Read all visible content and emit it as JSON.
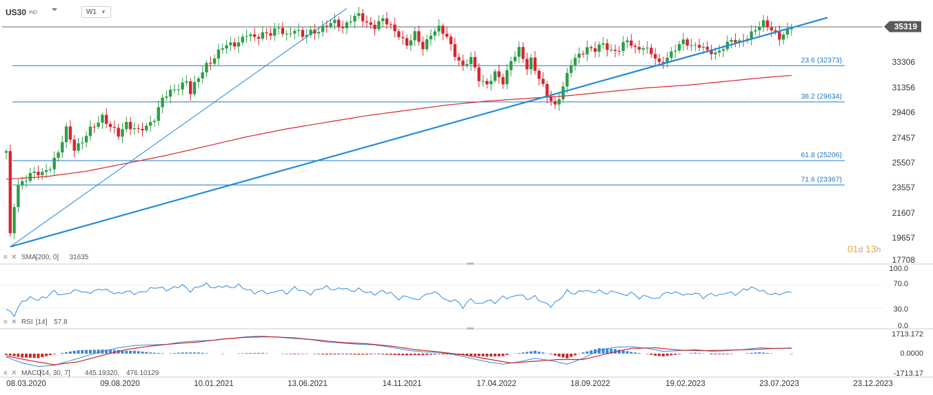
{
  "header": {
    "symbol": "US30",
    "symbol_type": "IND",
    "timeframe": "W1"
  },
  "countdown": {
    "days": "01",
    "d": "d",
    "hours": "13",
    "h": "h"
  },
  "colors": {
    "bull": "#2e9e48",
    "bear": "#d8252f",
    "sma": "#d8252f",
    "fib": "#1f78c1",
    "trend": "#1f8ad8",
    "rsi": "#2b8be0",
    "macd": "#3a86d8",
    "signal": "#c42a2a",
    "price_tag": "#5a5a5a",
    "countdown": "#f0a830"
  },
  "chart_data": [
    {
      "type": "candlestick",
      "title": "US30 IND W1",
      "x_tick_labels": [
        "08.03.2020",
        "09.08.2020",
        "10.01.2021",
        "13.06.2021",
        "14.11.2021",
        "17.04.2022",
        "18.09.2022",
        "19.02.2023",
        "23.07.2023",
        "23.12.2023"
      ],
      "y_tick_labels": [
        "35319",
        "33306",
        "31356",
        "29406",
        "27457",
        "25507",
        "23557",
        "21607",
        "19657",
        "17708"
      ],
      "ylim": [
        17708,
        36500
      ],
      "last_price": 35319,
      "anchors": [
        [
          0,
          25800
        ],
        [
          1,
          19500
        ],
        [
          2,
          21900
        ],
        [
          3,
          23400
        ],
        [
          6,
          24100
        ],
        [
          9,
          24300
        ],
        [
          11,
          24800
        ],
        [
          13,
          25700
        ],
        [
          15,
          27600
        ],
        [
          17,
          26200
        ],
        [
          19,
          26600
        ],
        [
          21,
          27500
        ],
        [
          24,
          28600
        ],
        [
          26,
          27700
        ],
        [
          28,
          27100
        ],
        [
          30,
          28100
        ],
        [
          32,
          27600
        ],
        [
          33,
          27400
        ],
        [
          35,
          27700
        ],
        [
          37,
          28500
        ],
        [
          39,
          29900
        ],
        [
          41,
          30300
        ],
        [
          43,
          30800
        ],
        [
          45,
          31300
        ],
        [
          46,
          30300
        ],
        [
          48,
          31400
        ],
        [
          50,
          32500
        ],
        [
          52,
          33000
        ],
        [
          54,
          33700
        ],
        [
          56,
          34000
        ],
        [
          58,
          34200
        ],
        [
          60,
          34700
        ],
        [
          62,
          34400
        ],
        [
          64,
          34900
        ],
        [
          66,
          34800
        ],
        [
          68,
          35100
        ],
        [
          70,
          34700
        ],
        [
          72,
          35200
        ],
        [
          74,
          34500
        ],
        [
          76,
          34900
        ],
        [
          78,
          35100
        ],
        [
          80,
          35400
        ],
        [
          82,
          35600
        ],
        [
          84,
          35300
        ],
        [
          86,
          35900
        ],
        [
          88,
          36100
        ],
        [
          90,
          35600
        ],
        [
          92,
          35400
        ],
        [
          94,
          35800
        ],
        [
          96,
          35300
        ],
        [
          98,
          34800
        ],
        [
          100,
          33900
        ],
        [
          102,
          34700
        ],
        [
          104,
          33800
        ],
        [
          106,
          34800
        ],
        [
          108,
          35100
        ],
        [
          110,
          34600
        ],
        [
          112,
          33300
        ],
        [
          114,
          32200
        ],
        [
          116,
          32900
        ],
        [
          118,
          31500
        ],
        [
          120,
          30900
        ],
        [
          122,
          31700
        ],
        [
          124,
          31200
        ],
        [
          126,
          32800
        ],
        [
          128,
          33500
        ],
        [
          130,
          32200
        ],
        [
          131,
          32900
        ],
        [
          133,
          31500
        ],
        [
          135,
          30000
        ],
        [
          137,
          29300
        ],
        [
          139,
          30900
        ],
        [
          141,
          32500
        ],
        [
          143,
          33100
        ],
        [
          145,
          33800
        ],
        [
          147,
          33600
        ],
        [
          149,
          33900
        ],
        [
          151,
          33500
        ],
        [
          153,
          33700
        ],
        [
          155,
          34200
        ],
        [
          157,
          33600
        ],
        [
          159,
          33900
        ],
        [
          161,
          33300
        ],
        [
          163,
          32400
        ],
        [
          165,
          33100
        ],
        [
          167,
          33700
        ],
        [
          169,
          34100
        ],
        [
          171,
          33900
        ],
        [
          173,
          34000
        ],
        [
          175,
          33400
        ],
        [
          177,
          33200
        ],
        [
          179,
          33900
        ],
        [
          181,
          34300
        ],
        [
          183,
          34000
        ],
        [
          185,
          34600
        ],
        [
          187,
          35200
        ],
        [
          189,
          35500
        ],
        [
          191,
          35100
        ],
        [
          193,
          34600
        ],
        [
          195,
          34900
        ],
        [
          196,
          35319
        ]
      ],
      "sma": {
        "label": "SMA",
        "params": "[200, 0]",
        "value": "31635"
      },
      "sma_points": [
        [
          0,
          23800
        ],
        [
          10,
          24000
        ],
        [
          20,
          24400
        ],
        [
          30,
          25000
        ],
        [
          40,
          25600
        ],
        [
          50,
          26300
        ],
        [
          60,
          27000
        ],
        [
          70,
          27600
        ],
        [
          80,
          28100
        ],
        [
          90,
          28600
        ],
        [
          100,
          29000
        ],
        [
          110,
          29400
        ],
        [
          120,
          29700
        ],
        [
          130,
          29900
        ],
        [
          140,
          30100
        ],
        [
          150,
          30400
        ],
        [
          160,
          30700
        ],
        [
          170,
          30900
        ],
        [
          180,
          31200
        ],
        [
          190,
          31500
        ],
        [
          196,
          31635
        ]
      ],
      "fib_levels": [
        {
          "label": "23.6 (32373)",
          "value": 32373
        },
        {
          "label": "38.2 (29634)",
          "value": 29634
        },
        {
          "label": "61.8 (25206)",
          "value": 25206
        },
        {
          "label": "71.6 (23367)",
          "value": 23367
        }
      ],
      "fib_top": 35300,
      "trend_lines": [
        {
          "from": [
            1,
            18700
          ],
          "to": [
            85,
            36700
          ]
        },
        {
          "from": [
            1,
            18700
          ],
          "to": [
            205,
            36000
          ]
        }
      ]
    },
    {
      "type": "line",
      "label": "RSI",
      "params": "[14]",
      "value": "57.8",
      "y_tick_labels": [
        "100.0",
        "70.0",
        "30.0",
        "0.0"
      ],
      "ylim": [
        0,
        100
      ],
      "anchors": [
        [
          0,
          28
        ],
        [
          2,
          18
        ],
        [
          4,
          42
        ],
        [
          6,
          48
        ],
        [
          8,
          45
        ],
        [
          10,
          50
        ],
        [
          12,
          60
        ],
        [
          14,
          52
        ],
        [
          16,
          58
        ],
        [
          18,
          62
        ],
        [
          20,
          56
        ],
        [
          22,
          60
        ],
        [
          24,
          64
        ],
        [
          26,
          59
        ],
        [
          28,
          55
        ],
        [
          30,
          60
        ],
        [
          32,
          56
        ],
        [
          34,
          58
        ],
        [
          36,
          64
        ],
        [
          38,
          67
        ],
        [
          40,
          62
        ],
        [
          42,
          66
        ],
        [
          44,
          70
        ],
        [
          46,
          60
        ],
        [
          48,
          68
        ],
        [
          50,
          72
        ],
        [
          52,
          65
        ],
        [
          54,
          69
        ],
        [
          56,
          66
        ],
        [
          58,
          70
        ],
        [
          60,
          63
        ],
        [
          62,
          57
        ],
        [
          64,
          60
        ],
        [
          66,
          55
        ],
        [
          68,
          62
        ],
        [
          70,
          56
        ],
        [
          72,
          66
        ],
        [
          74,
          60
        ],
        [
          76,
          55
        ],
        [
          78,
          64
        ],
        [
          80,
          67
        ],
        [
          82,
          62
        ],
        [
          84,
          66
        ],
        [
          86,
          60
        ],
        [
          88,
          63
        ],
        [
          90,
          58
        ],
        [
          92,
          55
        ],
        [
          94,
          60
        ],
        [
          96,
          56
        ],
        [
          98,
          46
        ],
        [
          100,
          52
        ],
        [
          102,
          44
        ],
        [
          104,
          50
        ],
        [
          106,
          58
        ],
        [
          108,
          55
        ],
        [
          110,
          42
        ],
        [
          112,
          45
        ],
        [
          114,
          32
        ],
        [
          116,
          46
        ],
        [
          118,
          36
        ],
        [
          120,
          44
        ],
        [
          122,
          40
        ],
        [
          124,
          50
        ],
        [
          126,
          48
        ],
        [
          128,
          55
        ],
        [
          130,
          46
        ],
        [
          132,
          50
        ],
        [
          134,
          40
        ],
        [
          136,
          34
        ],
        [
          138,
          45
        ],
        [
          140,
          60
        ],
        [
          142,
          55
        ],
        [
          144,
          62
        ],
        [
          146,
          58
        ],
        [
          148,
          60
        ],
        [
          150,
          56
        ],
        [
          152,
          60
        ],
        [
          154,
          52
        ],
        [
          156,
          57
        ],
        [
          158,
          48
        ],
        [
          160,
          52
        ],
        [
          162,
          45
        ],
        [
          164,
          55
        ],
        [
          166,
          58
        ],
        [
          168,
          56
        ],
        [
          170,
          53
        ],
        [
          172,
          57
        ],
        [
          174,
          49
        ],
        [
          176,
          55
        ],
        [
          178,
          52
        ],
        [
          180,
          58
        ],
        [
          182,
          54
        ],
        [
          184,
          62
        ],
        [
          186,
          66
        ],
        [
          188,
          62
        ],
        [
          190,
          56
        ],
        [
          192,
          54
        ],
        [
          194,
          56
        ],
        [
          196,
          57.8
        ]
      ]
    },
    {
      "type": "line",
      "label": "MACD",
      "params": "[14, 30, 7]",
      "values": [
        "445.19320",
        "476.10129"
      ],
      "y_tick_labels": [
        "1713.172",
        "0.0000",
        "-1713.17"
      ],
      "ylim": [
        -1713.17,
        1713.172
      ],
      "macd": [
        [
          0,
          -300
        ],
        [
          4,
          -800
        ],
        [
          8,
          -1100
        ],
        [
          12,
          -1000
        ],
        [
          16,
          -600
        ],
        [
          20,
          -200
        ],
        [
          24,
          200
        ],
        [
          28,
          500
        ],
        [
          32,
          700
        ],
        [
          36,
          750
        ],
        [
          40,
          800
        ],
        [
          44,
          1000
        ],
        [
          48,
          1100
        ],
        [
          52,
          1150
        ],
        [
          56,
          1300
        ],
        [
          60,
          1450
        ],
        [
          64,
          1500
        ],
        [
          68,
          1400
        ],
        [
          72,
          1300
        ],
        [
          76,
          1200
        ],
        [
          80,
          1000
        ],
        [
          84,
          900
        ],
        [
          88,
          800
        ],
        [
          92,
          750
        ],
        [
          96,
          550
        ],
        [
          100,
          300
        ],
        [
          104,
          150
        ],
        [
          108,
          100
        ],
        [
          112,
          -100
        ],
        [
          116,
          -400
        ],
        [
          120,
          -700
        ],
        [
          124,
          -900
        ],
        [
          128,
          -700
        ],
        [
          132,
          -400
        ],
        [
          136,
          -600
        ],
        [
          140,
          -900
        ],
        [
          144,
          -400
        ],
        [
          148,
          300
        ],
        [
          152,
          550
        ],
        [
          156,
          600
        ],
        [
          160,
          450
        ],
        [
          164,
          200
        ],
        [
          168,
          250
        ],
        [
          172,
          350
        ],
        [
          176,
          200
        ],
        [
          180,
          250
        ],
        [
          184,
          350
        ],
        [
          188,
          500
        ],
        [
          192,
          450
        ],
        [
          196,
          445.1932
        ]
      ],
      "signal": [
        [
          0,
          -200
        ],
        [
          6,
          -600
        ],
        [
          12,
          -950
        ],
        [
          18,
          -700
        ],
        [
          24,
          -150
        ],
        [
          30,
          350
        ],
        [
          36,
          650
        ],
        [
          42,
          850
        ],
        [
          48,
          1000
        ],
        [
          54,
          1250
        ],
        [
          60,
          1400
        ],
        [
          66,
          1450
        ],
        [
          72,
          1350
        ],
        [
          78,
          1150
        ],
        [
          84,
          950
        ],
        [
          90,
          850
        ],
        [
          96,
          650
        ],
        [
          102,
          350
        ],
        [
          108,
          150
        ],
        [
          114,
          -100
        ],
        [
          120,
          -450
        ],
        [
          126,
          -800
        ],
        [
          132,
          -650
        ],
        [
          138,
          -500
        ],
        [
          144,
          -500
        ],
        [
          150,
          0
        ],
        [
          156,
          450
        ],
        [
          162,
          500
        ],
        [
          168,
          300
        ],
        [
          174,
          250
        ],
        [
          180,
          300
        ],
        [
          186,
          350
        ],
        [
          192,
          450
        ],
        [
          196,
          476.10129
        ]
      ]
    }
  ]
}
